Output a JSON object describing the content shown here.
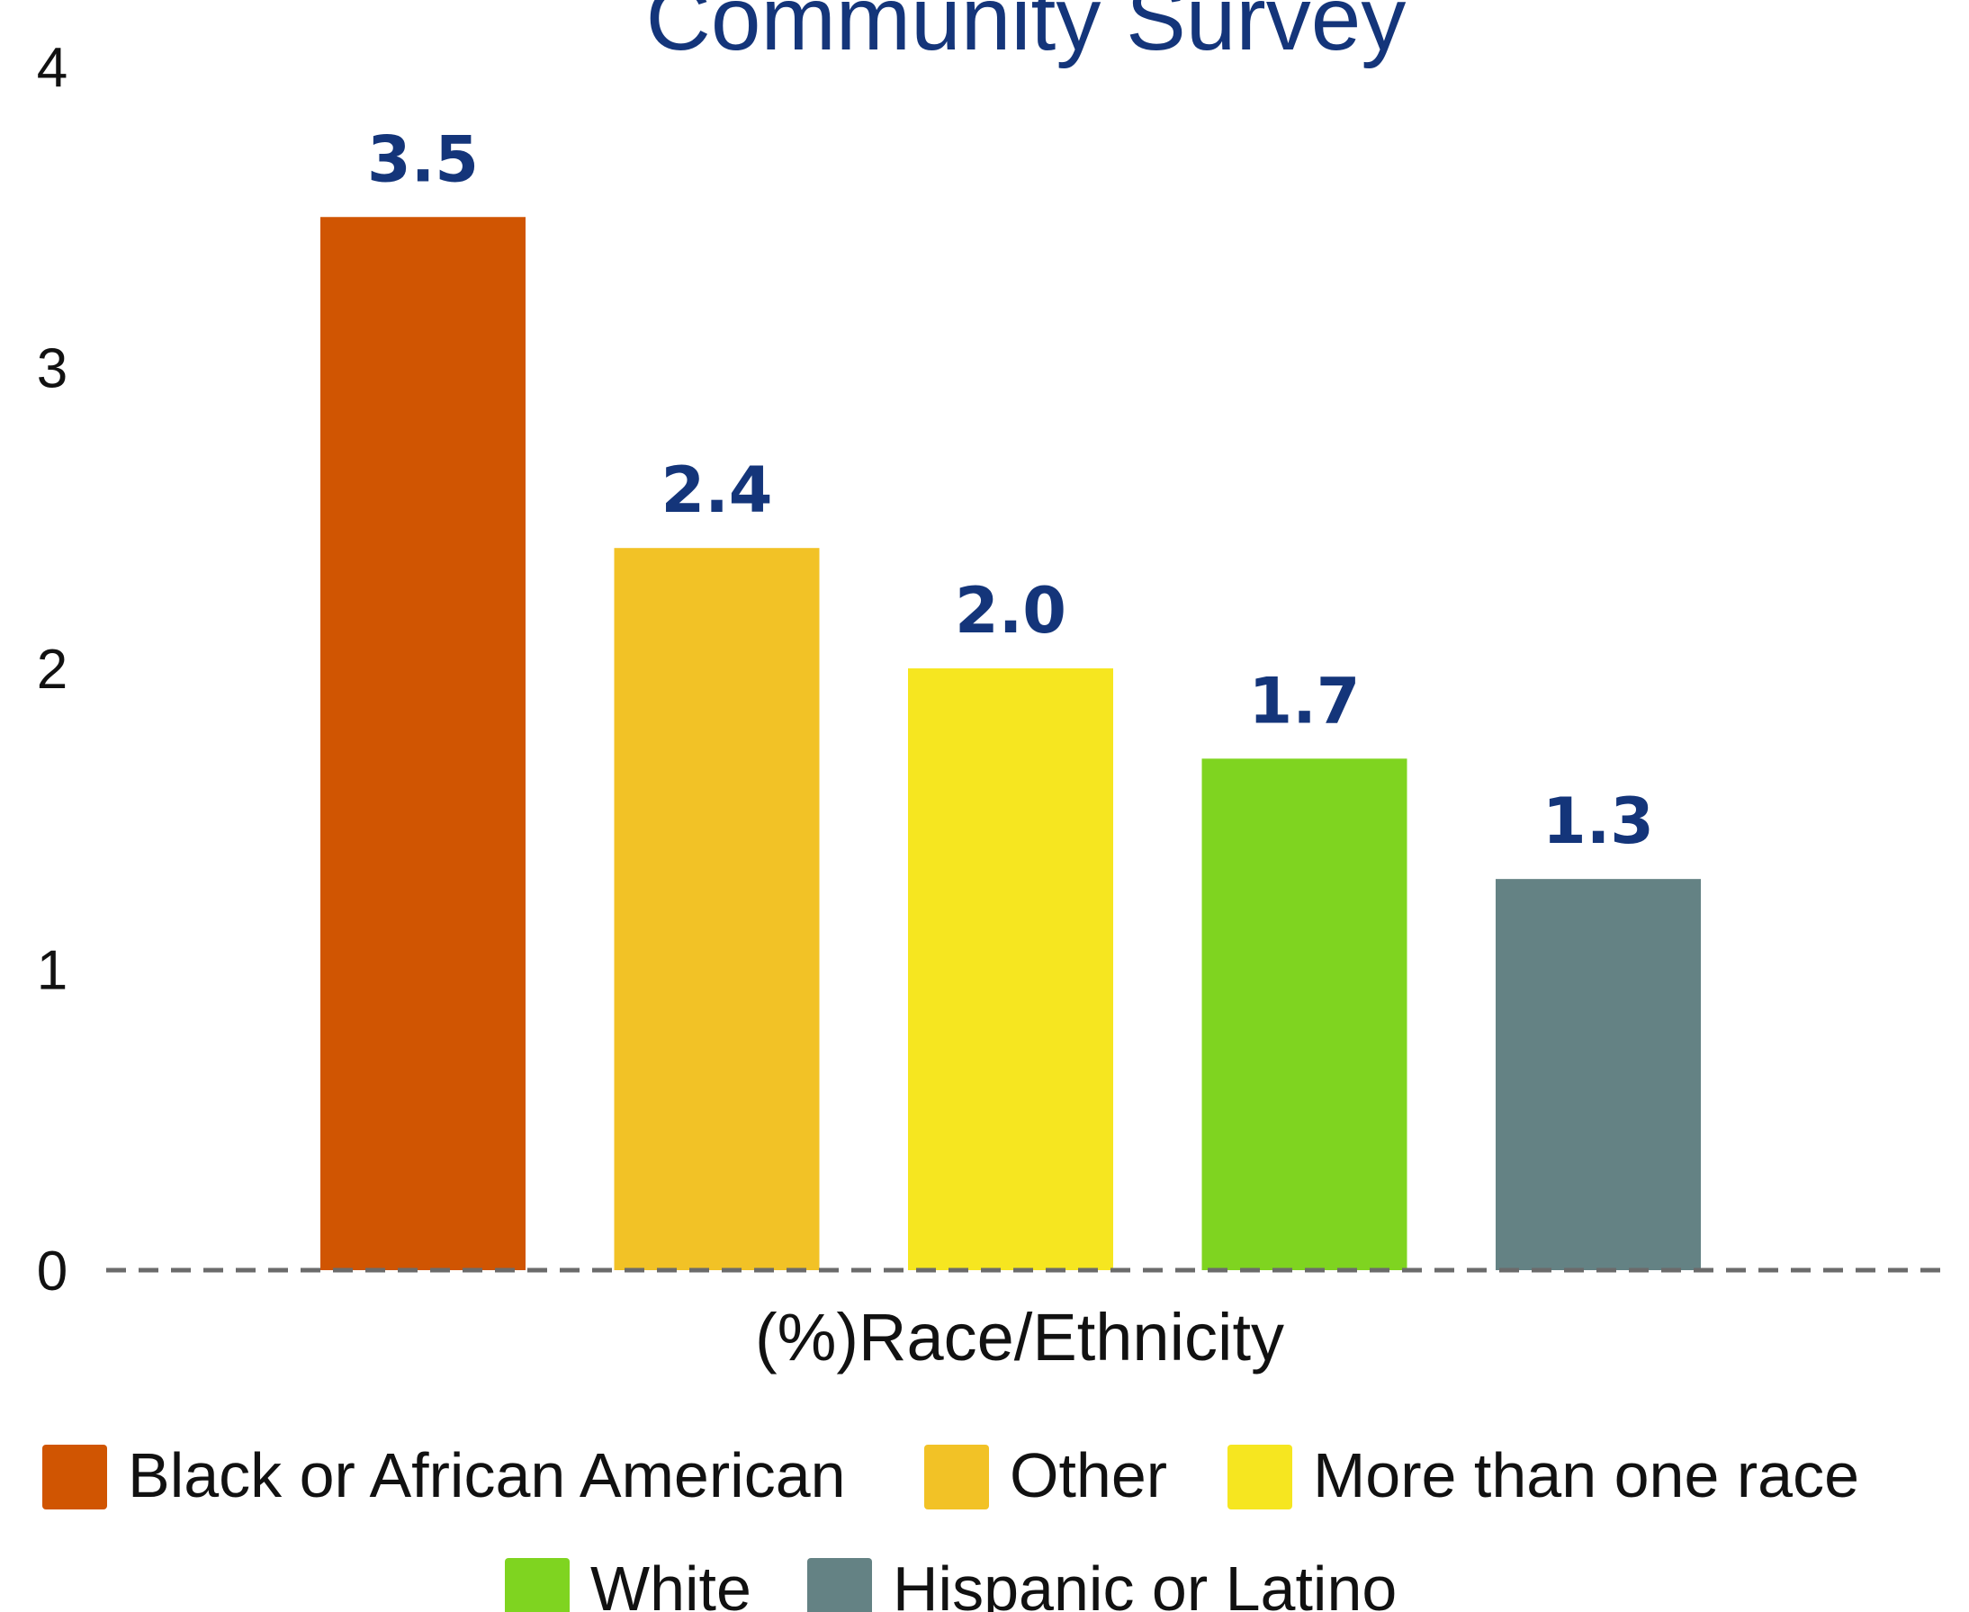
{
  "chart_data": {
    "type": "bar",
    "title": "Community Survey",
    "xlabel": "(%)Race/Ethnicity",
    "ylabel": "",
    "ylim": [
      0,
      4
    ],
    "yticks": [
      "0",
      "1",
      "2",
      "3",
      "4"
    ],
    "categories": [
      "Black or African American",
      "Other",
      "More than one race",
      "White",
      "Hispanic or Latino"
    ],
    "values": [
      3.5,
      2.4,
      2.0,
      1.7,
      1.3
    ],
    "data_labels": [
      "3.5",
      "2.4",
      "2.0",
      "1.7",
      "1.3"
    ],
    "colors": [
      "#d05502",
      "#f2c226",
      "#f6e620",
      "#7fd420",
      "#648284"
    ],
    "label_color": "#14357a",
    "grid": false,
    "baseline": "dashed",
    "legend": {
      "position": "bottom",
      "entries": [
        "Black or African American",
        "Other",
        "More than one race",
        "White",
        "Hispanic or Latino"
      ]
    }
  }
}
